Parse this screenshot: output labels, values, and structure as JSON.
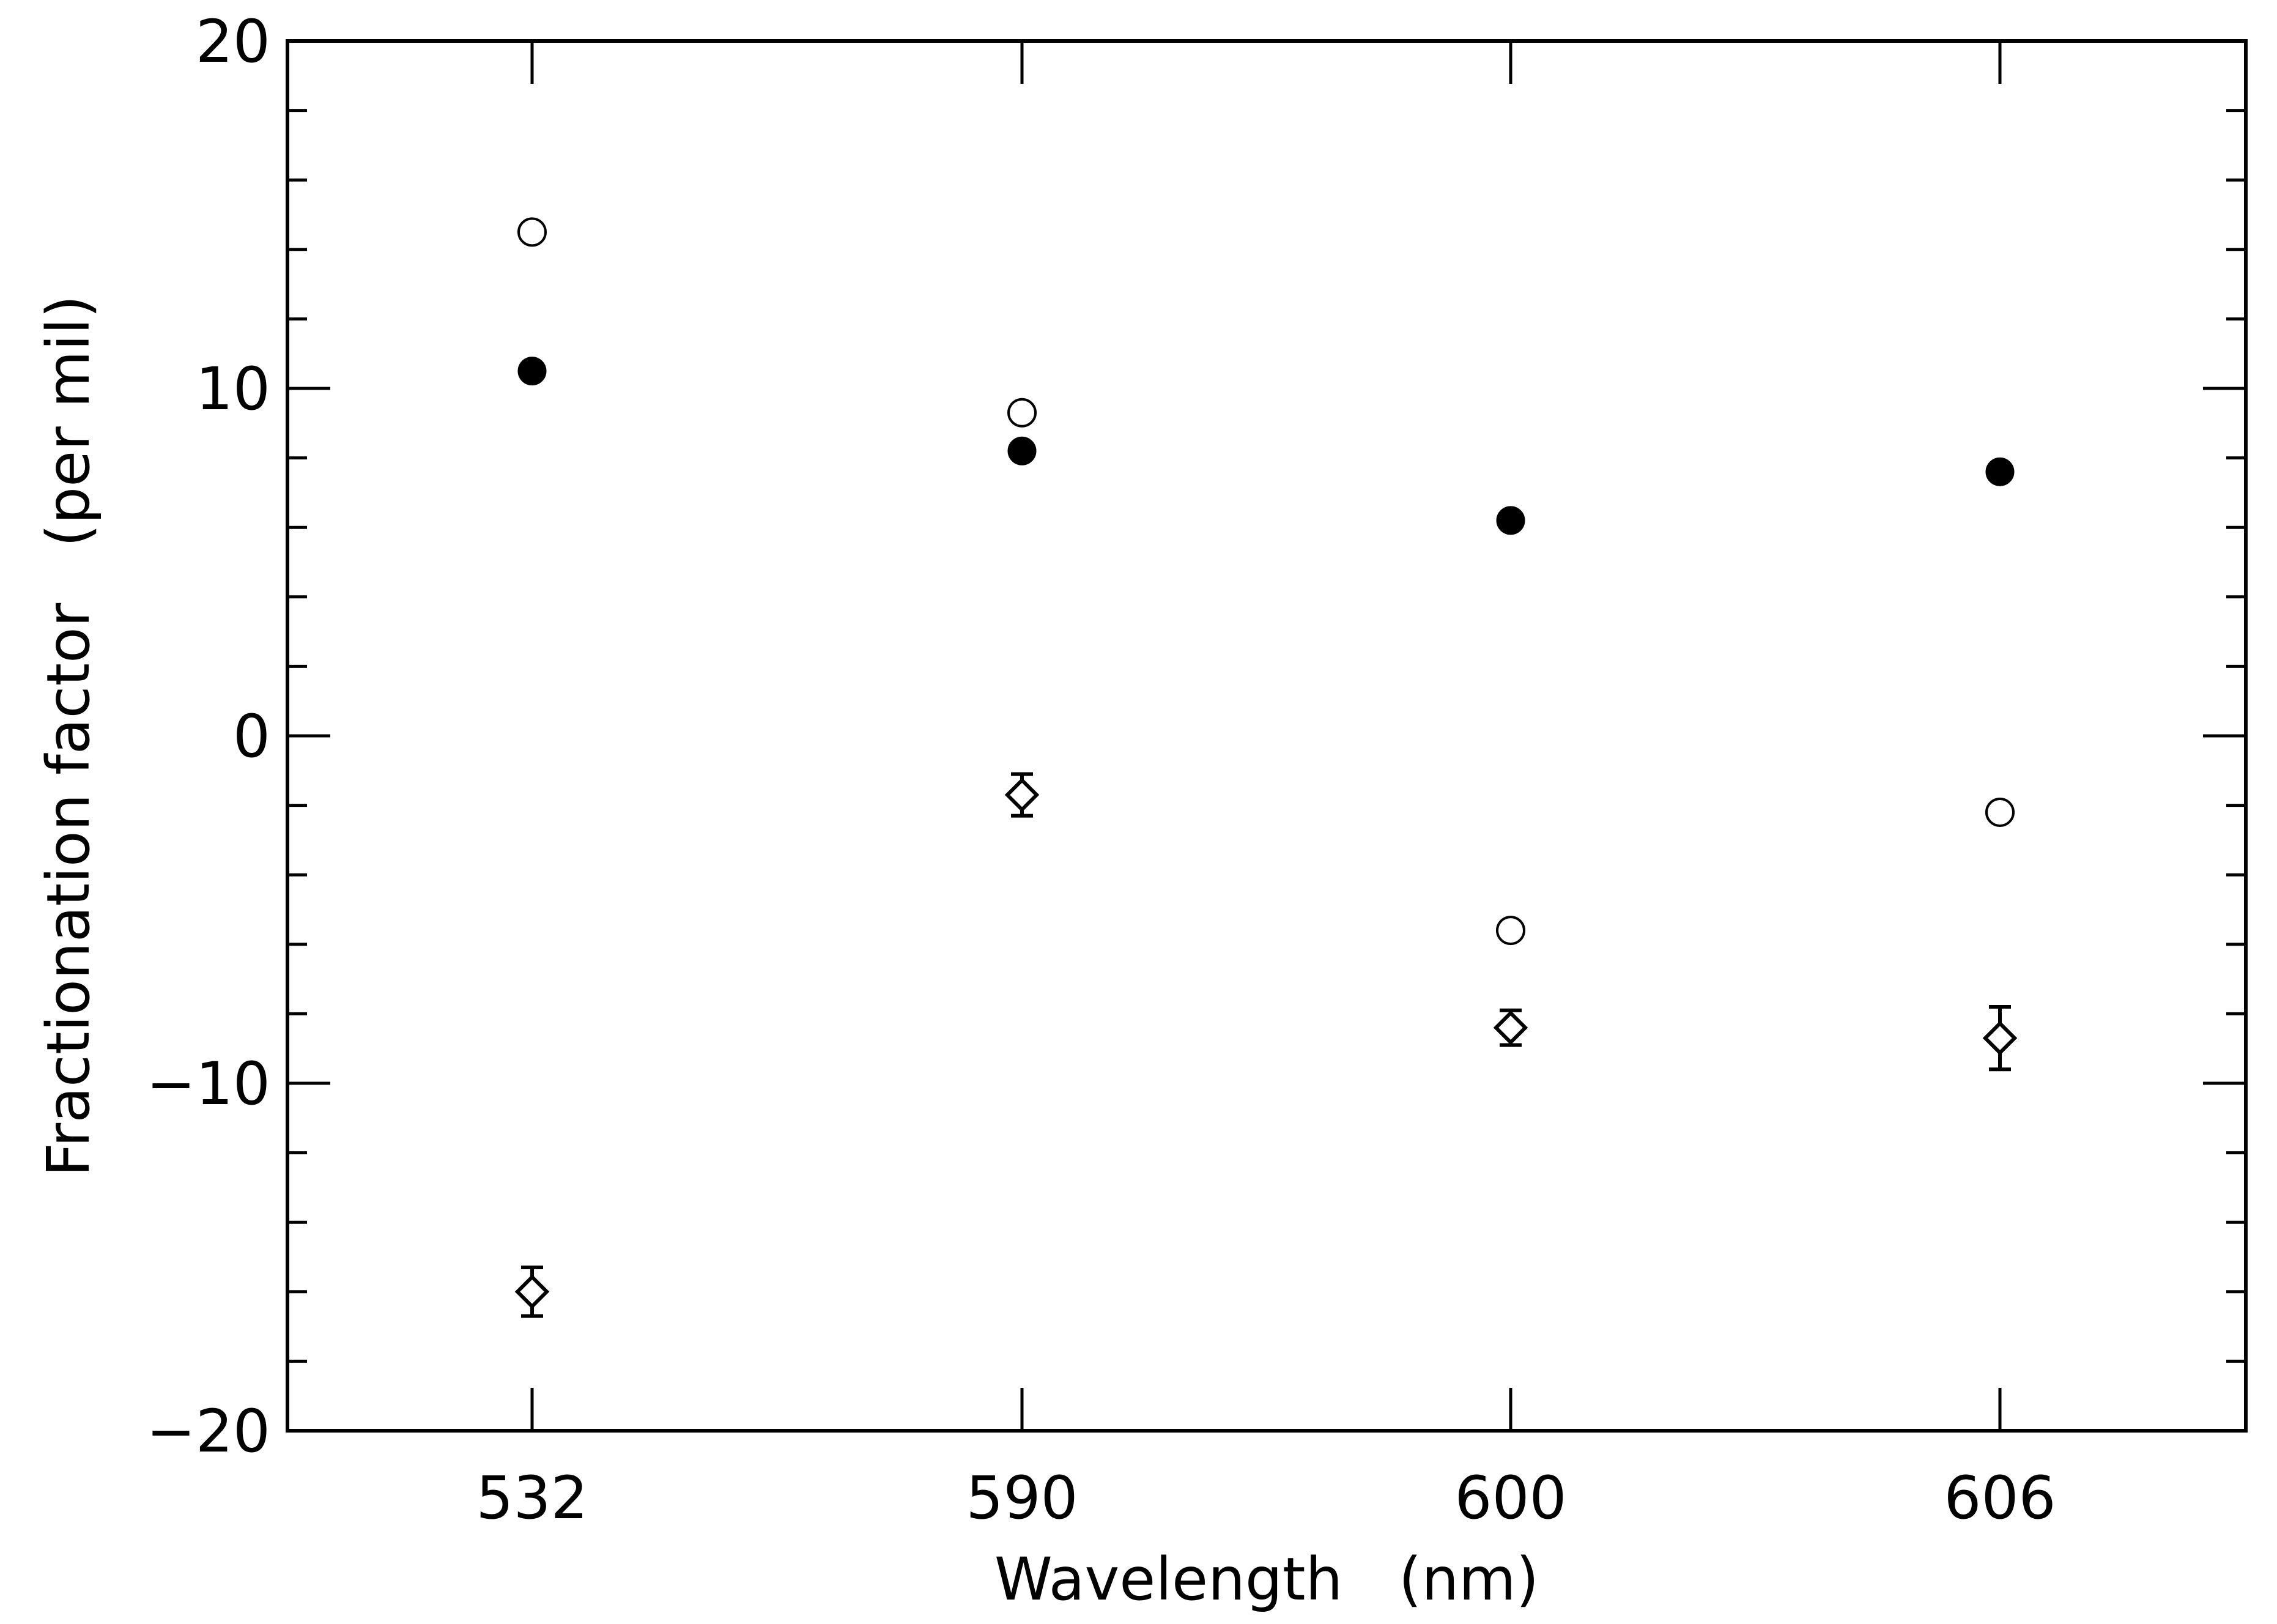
{
  "chart_data": {
    "type": "scatter",
    "title": "",
    "xlabel": "Wavelength   (nm)",
    "ylabel": "Fractionation factor   (per mil)",
    "categories": [
      "532",
      "590",
      "600",
      "606"
    ],
    "ylim": [
      -20,
      20
    ],
    "y_major_ticks": [
      -20,
      -10,
      0,
      10,
      20
    ],
    "y_major_tick_labels": [
      "−20",
      "−10",
      "0",
      "10",
      "20"
    ],
    "y_minor_step": 2,
    "grid": false,
    "legend": "none",
    "series": [
      {
        "marker": "filled-circle",
        "values": [
          10.5,
          8.2,
          6.2,
          7.6
        ]
      },
      {
        "marker": "open-circle",
        "values": [
          14.5,
          9.3,
          -5.6,
          -2.2
        ]
      },
      {
        "marker": "diamond-with-error-bars",
        "values": [
          -16.0,
          -1.7,
          -8.4,
          -8.7
        ],
        "errors": [
          0.7,
          0.6,
          0.5,
          0.9
        ]
      }
    ],
    "colors": {
      "ink": "#000000",
      "background": "#ffffff"
    }
  }
}
